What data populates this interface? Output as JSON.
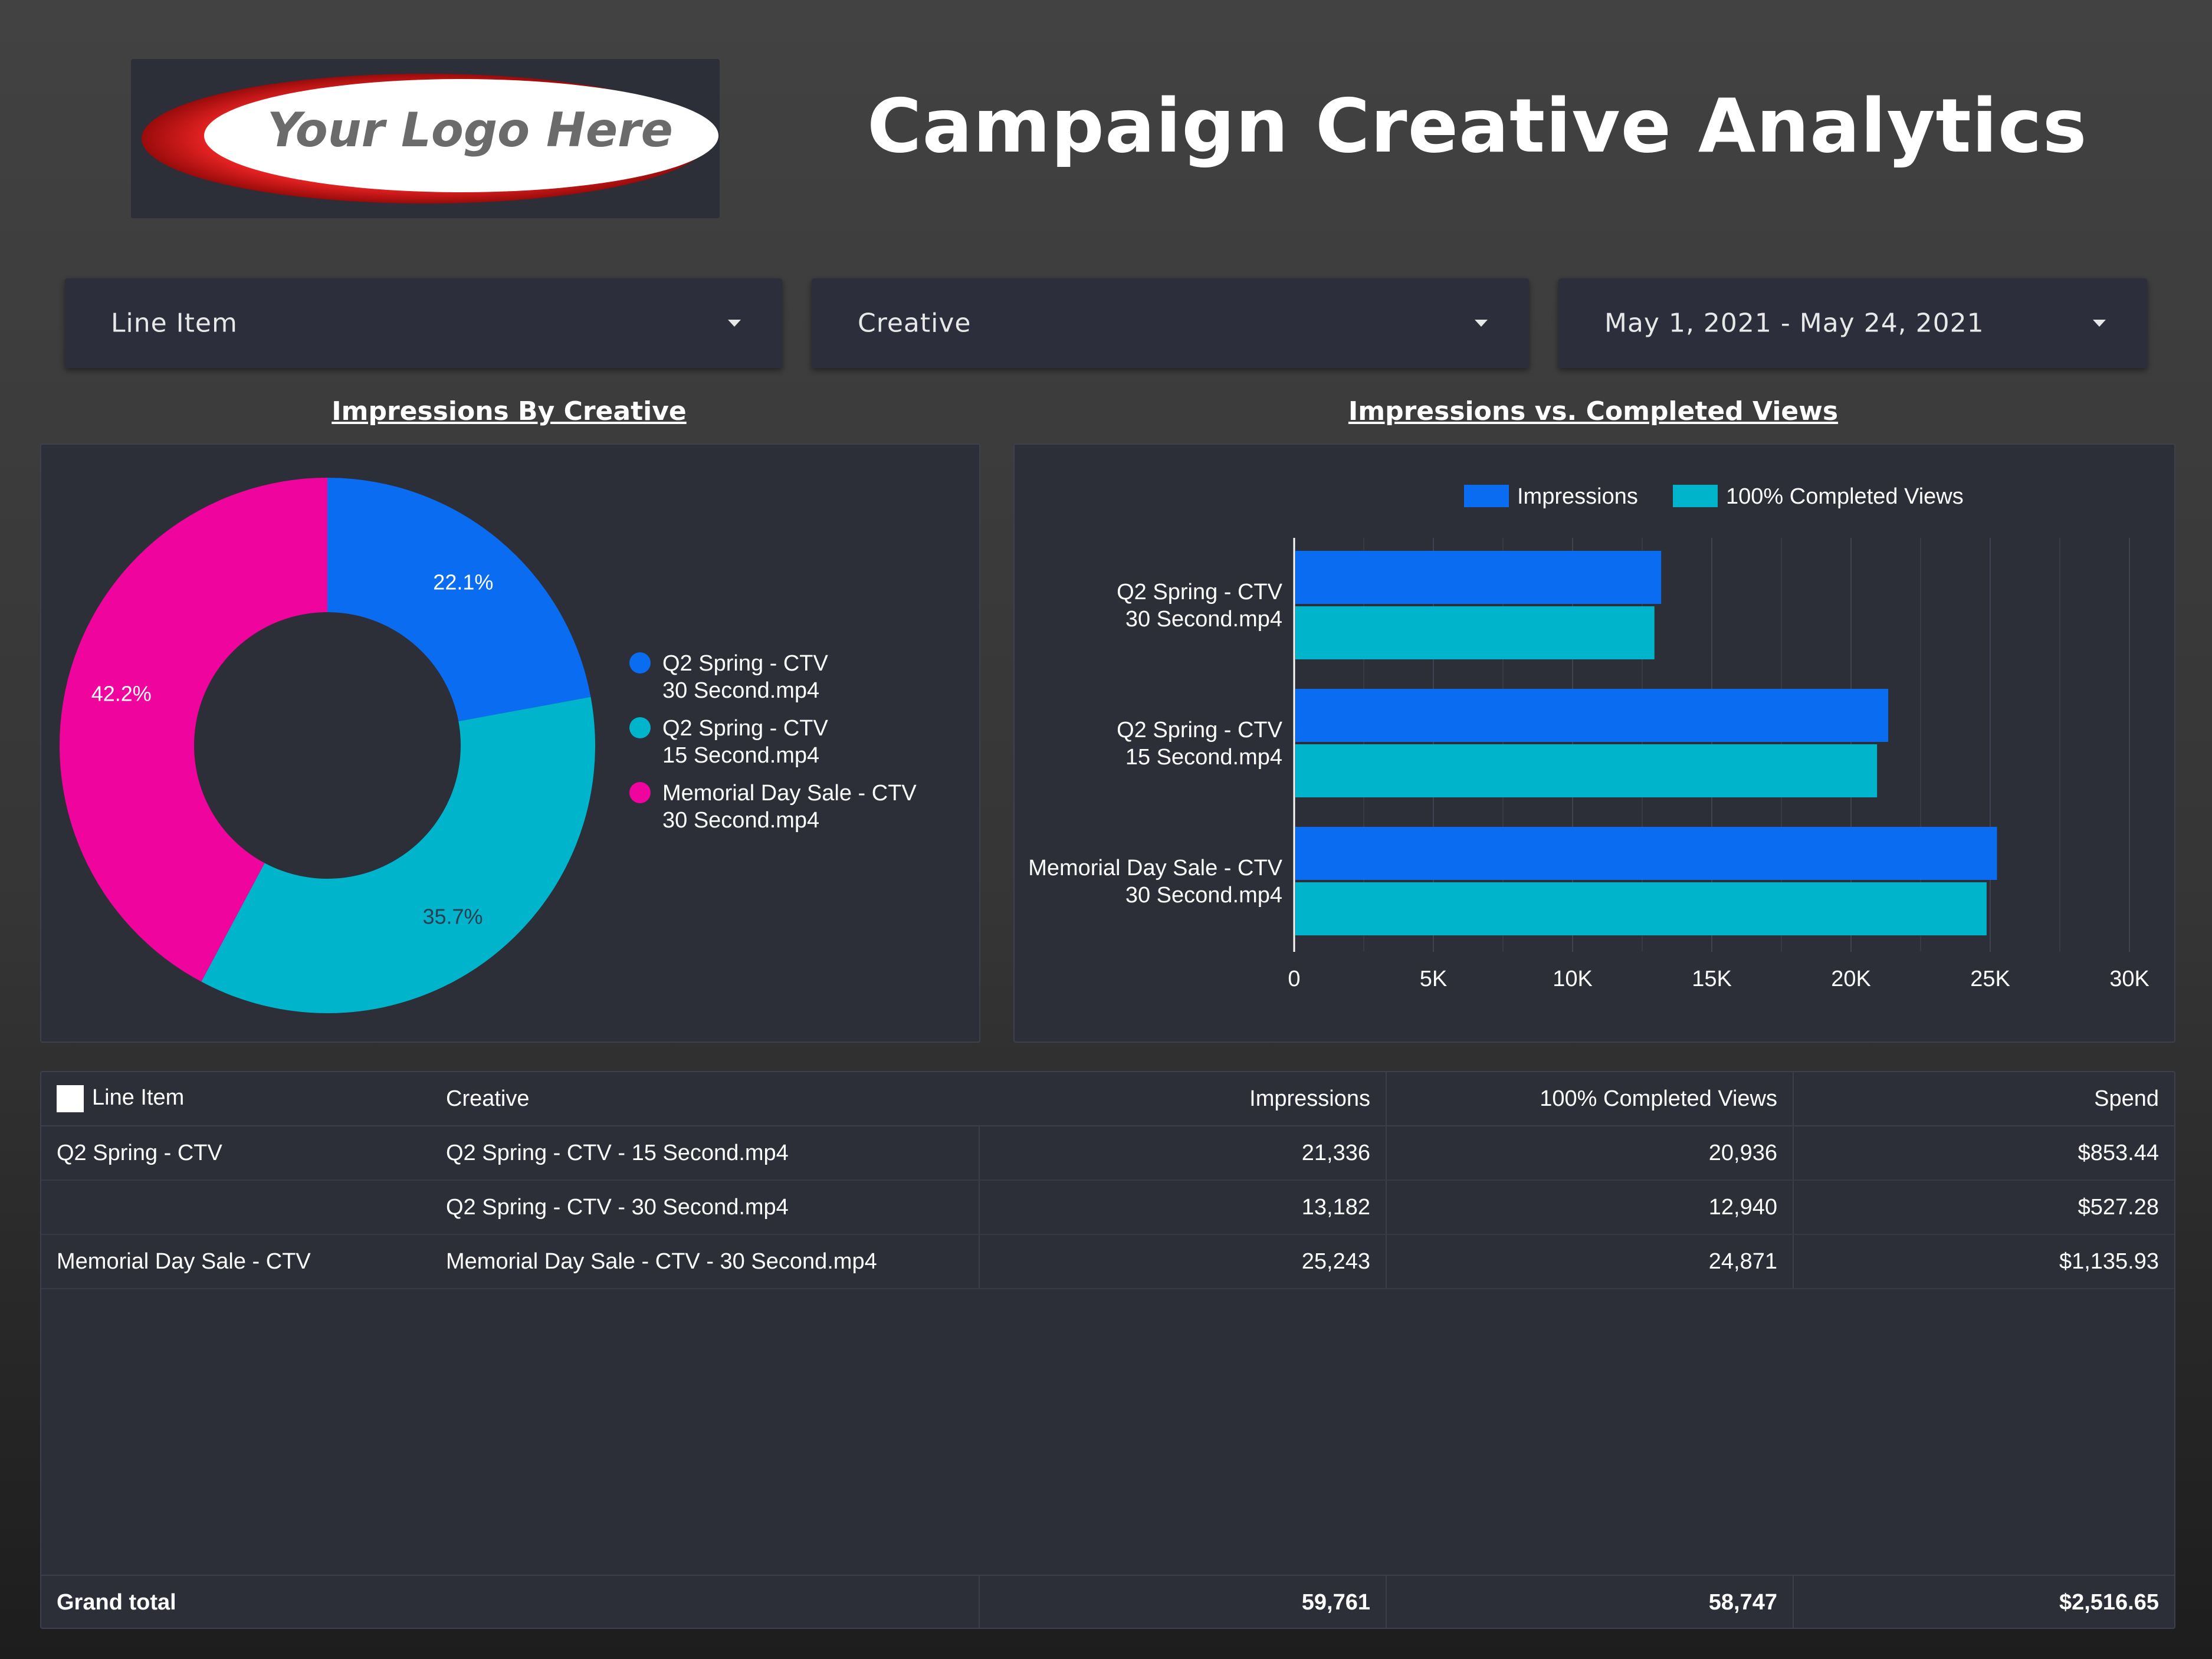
{
  "header": {
    "logo_text": "Your Logo Here",
    "title": "Campaign Creative Analytics"
  },
  "filters": {
    "line_item": "Line Item",
    "creative": "Creative",
    "date_range": "May 1, 2021 - May 24, 2021"
  },
  "pie_section": {
    "title": "Impressions By Creative"
  },
  "bar_section": {
    "title": "Impressions vs. Completed Views"
  },
  "colors": {
    "blue": "#0a6cf0",
    "teal": "#00b4cc",
    "magenta": "#f0049e",
    "panel": "#2c2e38"
  },
  "chart_data": [
    {
      "type": "pie",
      "donut": true,
      "title": "Impressions By Creative",
      "slices": [
        {
          "label": "Q2 Spring - CTV 30 Second.mp4",
          "lines": [
            "Q2 Spring - CTV",
            "30 Second.mp4"
          ],
          "value": 22.1,
          "display": "22.1%",
          "color": "#0a6cf0"
        },
        {
          "label": "Q2 Spring - CTV 15 Second.mp4",
          "lines": [
            "Q2 Spring - CTV",
            "15 Second.mp4"
          ],
          "value": 35.7,
          "display": "35.7%",
          "color": "#00b4cc"
        },
        {
          "label": "Memorial Day Sale - CTV 30 Second.mp4",
          "lines": [
            "Memorial Day Sale - CTV",
            "30 Second.mp4"
          ],
          "value": 42.2,
          "display": "42.2%",
          "color": "#f0049e"
        }
      ],
      "legend_position": "right"
    },
    {
      "type": "bar",
      "orientation": "horizontal",
      "title": "Impressions vs. Completed Views",
      "categories": [
        [
          "Q2 Spring - CTV",
          "30 Second.mp4"
        ],
        [
          "Q2 Spring - CTV",
          "15 Second.mp4"
        ],
        [
          "Memorial Day Sale - CTV",
          "30 Second.mp4"
        ]
      ],
      "series": [
        {
          "name": "Impressions",
          "values": [
            13182,
            21336,
            25243
          ],
          "color": "#0a6cf0"
        },
        {
          "name": "100% Completed Views",
          "values": [
            12940,
            20936,
            24871
          ],
          "color": "#00b4cc"
        }
      ],
      "xlim": [
        0,
        30000
      ],
      "x_ticks": [
        {
          "value": 0,
          "label": "0"
        },
        {
          "value": 5000,
          "label": "5K"
        },
        {
          "value": 10000,
          "label": "10K"
        },
        {
          "value": 15000,
          "label": "15K"
        },
        {
          "value": 20000,
          "label": "20K"
        },
        {
          "value": 25000,
          "label": "25K"
        },
        {
          "value": 30000,
          "label": "30K"
        }
      ],
      "grid": true,
      "legend_position": "top"
    }
  ],
  "table": {
    "columns": [
      "Line Item",
      "Creative",
      "Impressions",
      "100% Completed Views",
      "Spend"
    ],
    "rows": [
      {
        "line_item": "Q2 Spring - CTV",
        "creative": "Q2 Spring - CTV - 15 Second.mp4",
        "impressions": "21,336",
        "completed": "20,936",
        "spend": "$853.44"
      },
      {
        "line_item": "",
        "creative": "Q2 Spring - CTV - 30 Second.mp4",
        "impressions": "13,182",
        "completed": "12,940",
        "spend": "$527.28"
      },
      {
        "line_item": "Memorial Day Sale - CTV",
        "creative": "Memorial Day Sale - CTV - 30 Second.mp4",
        "impressions": "25,243",
        "completed": "24,871",
        "spend": "$1,135.93"
      }
    ],
    "grand_total": {
      "label": "Grand total",
      "impressions": "59,761",
      "completed": "58,747",
      "spend": "$2,516.65"
    }
  }
}
